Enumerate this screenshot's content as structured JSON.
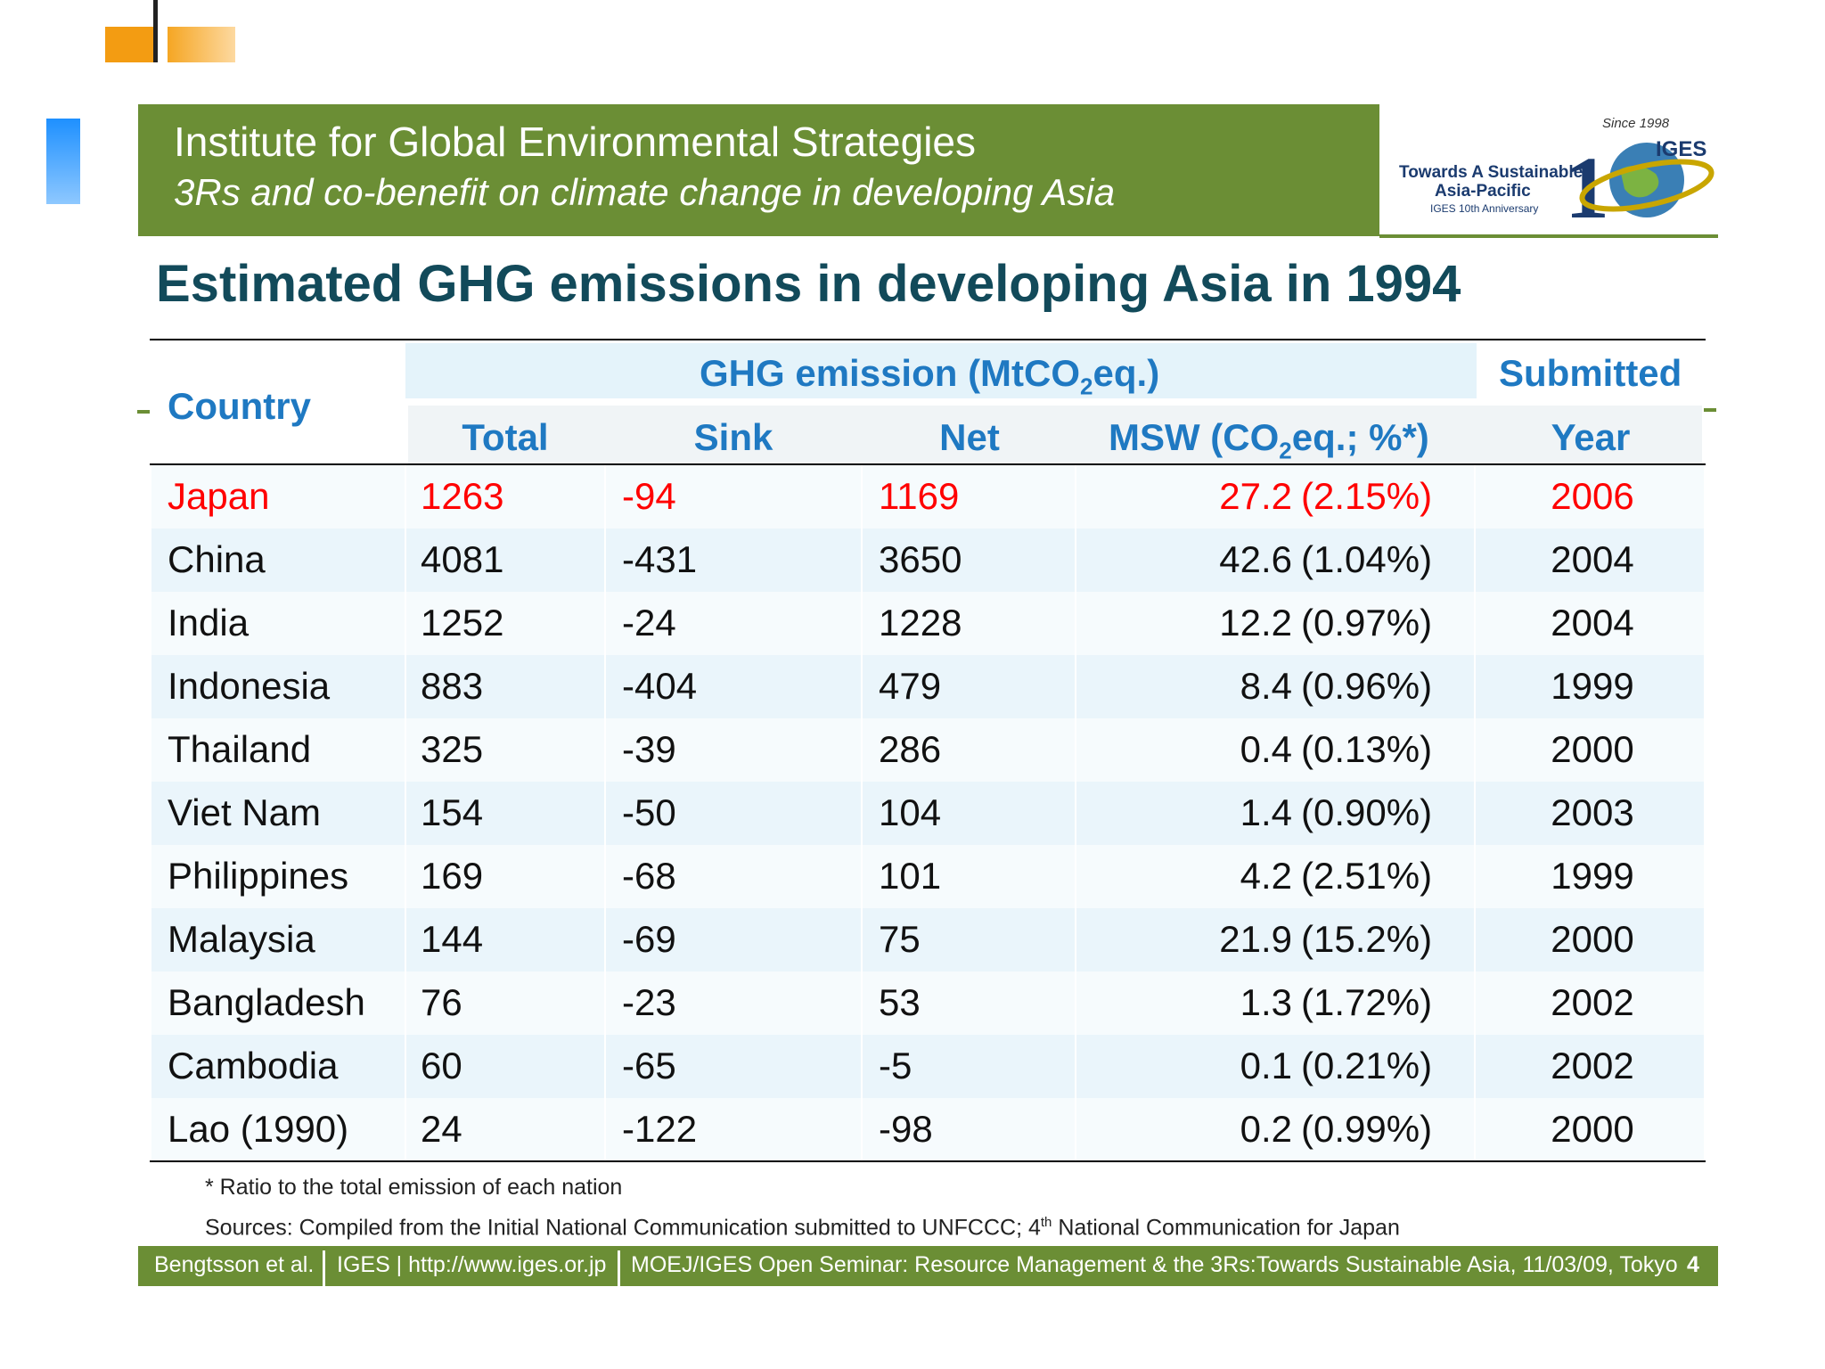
{
  "header": {
    "title": "Institute for Global Environmental Strategies",
    "subtitle": "3Rs and co-benefit on climate change in developing Asia"
  },
  "logo": {
    "line1": "Towards A Sustainable",
    "line2": "Asia-Pacific",
    "line3": "IGES 10th Anniversary",
    "since": "Since 1998",
    "brand": "IGES"
  },
  "slide_title": "Estimated GHG emissions in developing Asia  in 1994",
  "table": {
    "col_country": "Country",
    "group_ghg": "GHG emission (MtCO",
    "group_ghg_sub": "2",
    "group_ghg_tail": "eq.)",
    "col_submitted": "Submitted",
    "col_total": "Total",
    "col_sink": "Sink",
    "col_net": "Net",
    "col_msw": "MSW (CO",
    "col_msw_sub": "2",
    "col_msw_tail": "eq.; %*)",
    "col_year": "Year",
    "rows": [
      {
        "country": "Japan",
        "total": "1263",
        "sink": "-94",
        "net": "1169",
        "msw": "27.2",
        "pct": "(2.15%)",
        "year": "2006"
      },
      {
        "country": "China",
        "total": "4081",
        "sink": "-431",
        "net": "3650",
        "msw": "42.6",
        "pct": "(1.04%)",
        "year": "2004"
      },
      {
        "country": "India",
        "total": "1252",
        "sink": "-24",
        "net": "1228",
        "msw": "12.2",
        "pct": "(0.97%)",
        "year": "2004"
      },
      {
        "country": "Indonesia",
        "total": "883",
        "sink": "-404",
        "net": "479",
        "msw": "8.4",
        "pct": "(0.96%)",
        "year": "1999"
      },
      {
        "country": "Thailand",
        "total": "325",
        "sink": "-39",
        "net": "286",
        "msw": "0.4",
        "pct": "(0.13%)",
        "year": "2000"
      },
      {
        "country": "Viet Nam",
        "total": "154",
        "sink": "-50",
        "net": "104",
        "msw": "1.4",
        "pct": "(0.90%)",
        "year": "2003"
      },
      {
        "country": "Philippines",
        "total": "169",
        "sink": "-68",
        "net": "101",
        "msw": "4.2",
        "pct": "(2.51%)",
        "year": "1999"
      },
      {
        "country": "Malaysia",
        "total": "144",
        "sink": "-69",
        "net": "75",
        "msw": "21.9",
        "pct": "(15.2%)",
        "year": "2000"
      },
      {
        "country": "Bangladesh",
        "total": "76",
        "sink": "-23",
        "net": "53",
        "msw": "1.3",
        "pct": "(1.72%)",
        "year": "2002"
      },
      {
        "country": "Cambodia",
        "total": "60",
        "sink": "-65",
        "net": "-5",
        "msw": "0.1",
        "pct": "(0.21%)",
        "year": "2002"
      },
      {
        "country": "Lao (1990)",
        "total": "24",
        "sink": "-122",
        "net": "-98",
        "msw": "0.2",
        "pct": "(0.99%)",
        "year": "2000"
      }
    ]
  },
  "note": "* Ratio to the total emission of each nation",
  "sources_pre": "Sources: Compiled from the Initial National Communication submitted to UNFCCC; 4",
  "sources_sup": "th",
  "sources_post": " National Communication for Japan",
  "footer": {
    "author": "Bengtsson et al.",
    "org": "IGES | http://www.iges.or.jp",
    "event": "MOEJ/IGES Open Seminar: Resource Management & the 3Rs:Towards Sustainable Asia, 11/03/09, Tokyo",
    "page": "4"
  },
  "colors": {
    "header_green": "#6b8e35",
    "title_teal": "#124a5a",
    "head_blue": "#1f79c2",
    "highlight_red": "#ff0000"
  }
}
